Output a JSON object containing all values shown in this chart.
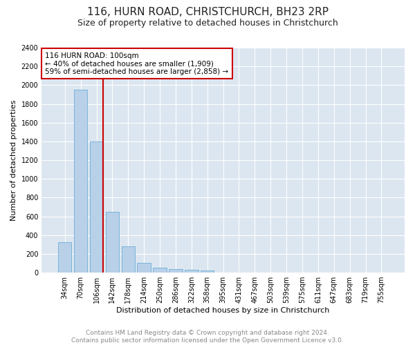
{
  "title": "116, HURN ROAD, CHRISTCHURCH, BH23 2RP",
  "subtitle": "Size of property relative to detached houses in Christchurch",
  "xlabel": "Distribution of detached houses by size in Christchurch",
  "ylabel": "Number of detached properties",
  "categories": [
    "34sqm",
    "70sqm",
    "106sqm",
    "142sqm",
    "178sqm",
    "214sqm",
    "250sqm",
    "286sqm",
    "322sqm",
    "358sqm",
    "395sqm",
    "431sqm",
    "467sqm",
    "503sqm",
    "539sqm",
    "575sqm",
    "611sqm",
    "647sqm",
    "683sqm",
    "719sqm",
    "755sqm"
  ],
  "values": [
    325,
    1950,
    1400,
    650,
    280,
    105,
    50,
    40,
    30,
    20,
    0,
    0,
    0,
    0,
    0,
    0,
    0,
    0,
    0,
    0,
    0
  ],
  "bar_color": "#b8d0e8",
  "bar_edge_color": "#6baed6",
  "vline_x_index": 2,
  "vline_color": "#cc0000",
  "annotation_title": "116 HURN ROAD: 100sqm",
  "annotation_line1": "← 40% of detached houses are smaller (1,909)",
  "annotation_line2": "59% of semi-detached houses are larger (2,858) →",
  "annotation_box_color": "#cc0000",
  "ylim": [
    0,
    2400
  ],
  "yticks": [
    0,
    200,
    400,
    600,
    800,
    1000,
    1200,
    1400,
    1600,
    1800,
    2000,
    2200,
    2400
  ],
  "background_color": "#dce6f0",
  "grid_color": "#ffffff",
  "fig_background": "#ffffff",
  "footer_line1": "Contains HM Land Registry data © Crown copyright and database right 2024.",
  "footer_line2": "Contains public sector information licensed under the Open Government Licence v3.0.",
  "title_fontsize": 11,
  "subtitle_fontsize": 9,
  "label_fontsize": 8,
  "tick_fontsize": 7,
  "footer_fontsize": 6.5
}
